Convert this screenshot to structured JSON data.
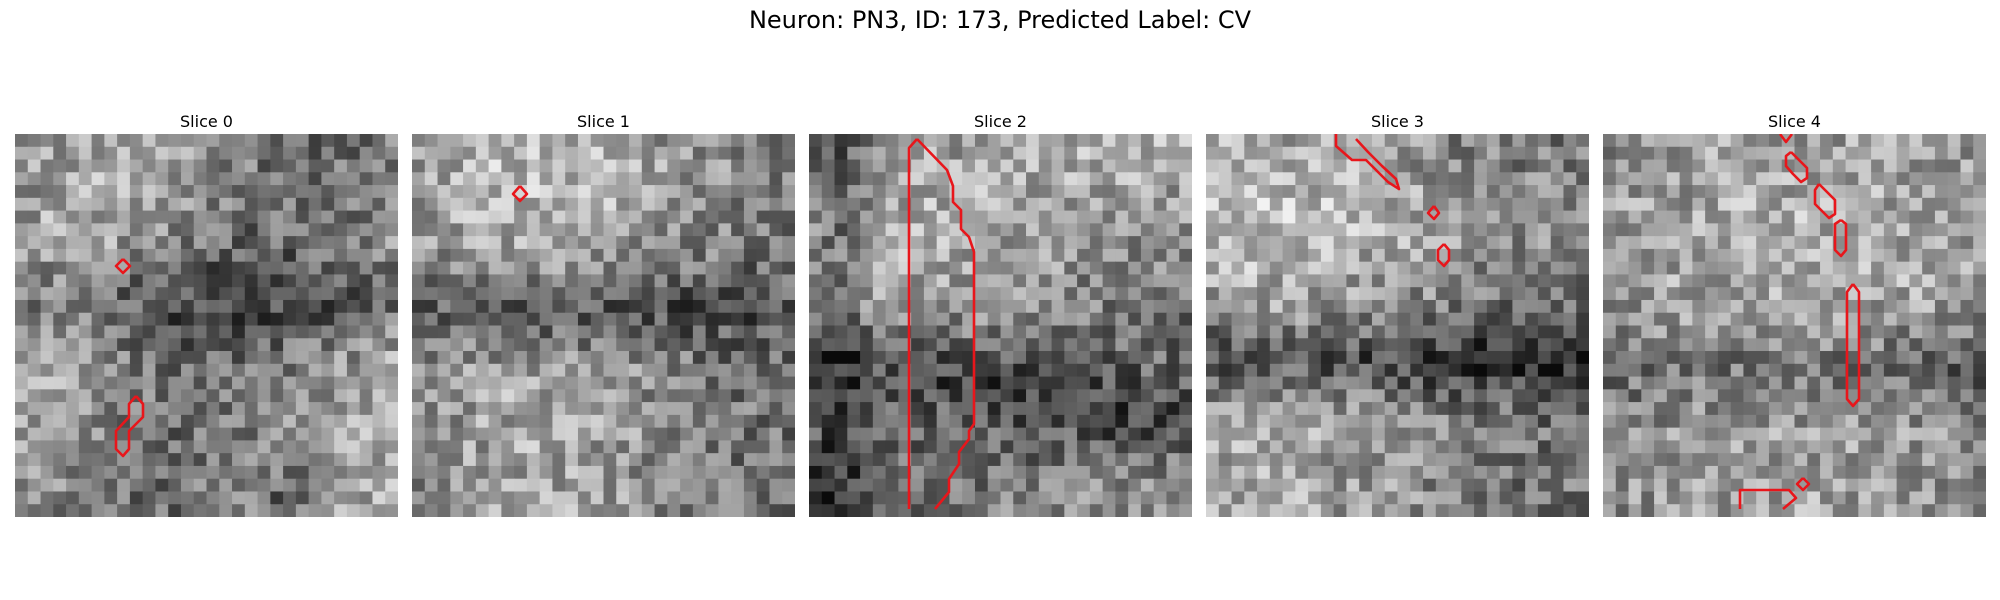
{
  "figure": {
    "title": "Neuron: PN3, ID: 173, Predicted Label: CV"
  },
  "panels": [
    {
      "title": "Slice 0",
      "seed": 11
    },
    {
      "title": "Slice 1",
      "seed": 23
    },
    {
      "title": "Slice 2",
      "seed": 37
    },
    {
      "title": "Slice 3",
      "seed": 41
    },
    {
      "title": "Slice 4",
      "seed": 59
    }
  ],
  "colors": {
    "contour": "#e8161b"
  }
}
